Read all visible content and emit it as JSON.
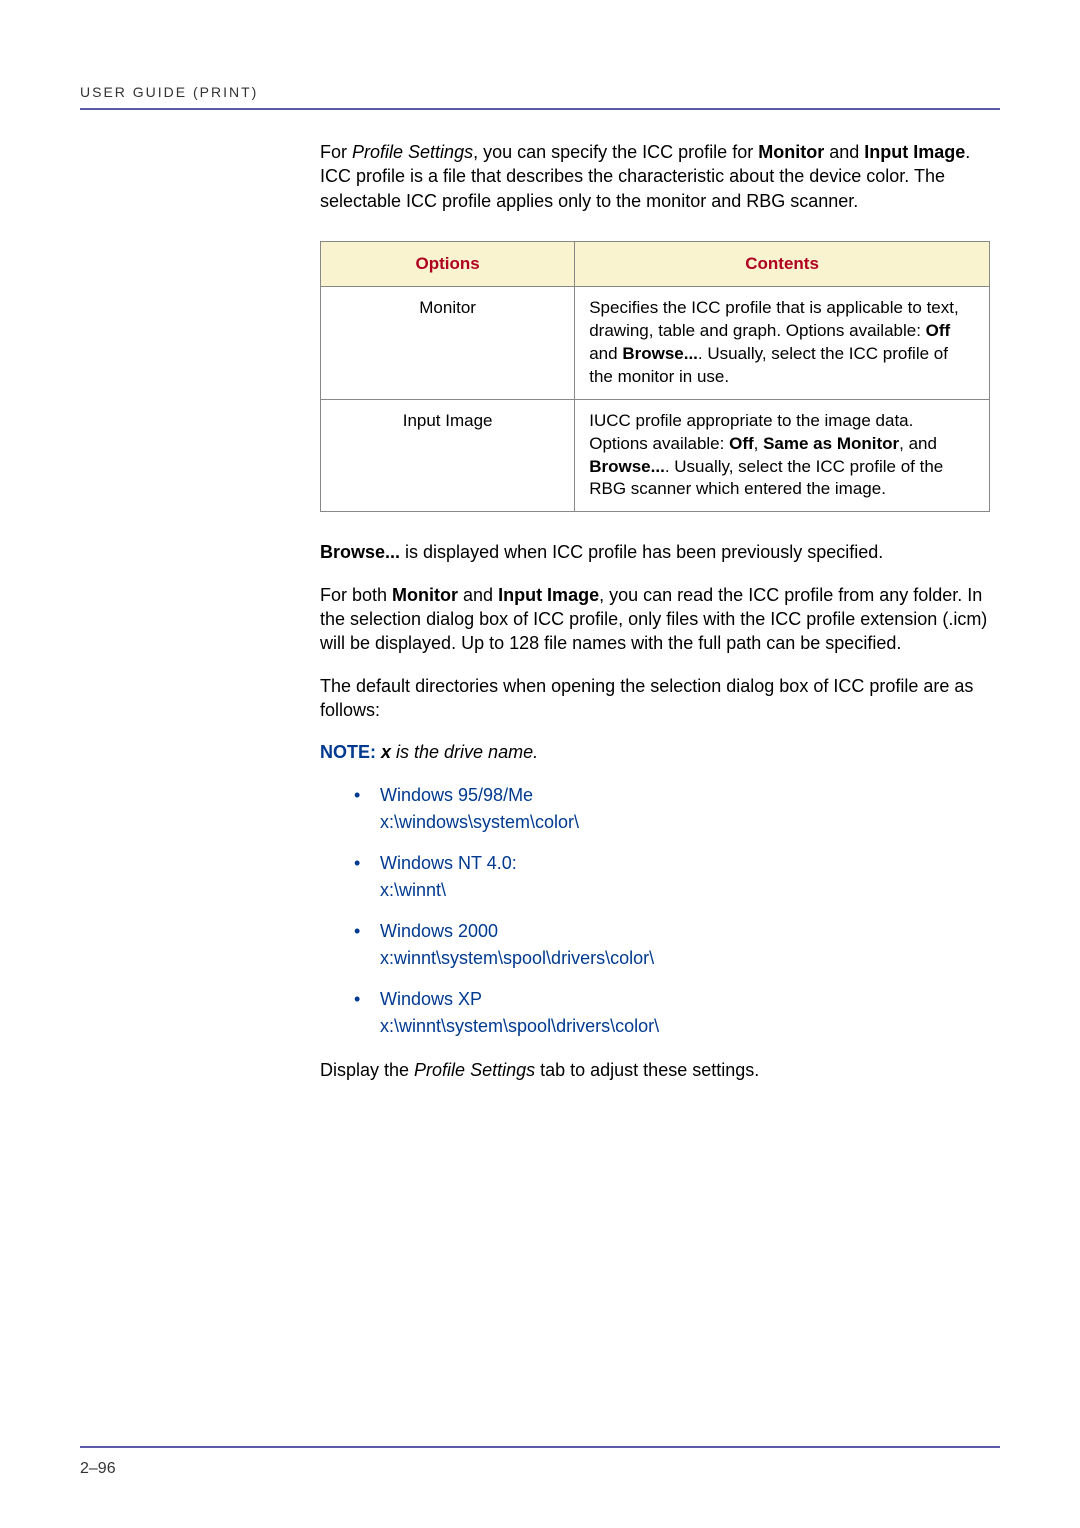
{
  "header": {
    "text": "USER GUIDE (PRINT)"
  },
  "intro": {
    "prefix": "For ",
    "profile_settings": "Profile Settings",
    "mid1": ", you can specify the ICC profile for ",
    "monitor": "Monitor",
    "mid2": " and ",
    "input_image": "Input Image",
    "rest": ". ICC profile is a file that describes the characteristic about the device color. The selectable ICC profile applies only to the monitor and RBG scanner."
  },
  "table": {
    "headers": {
      "options": "Options",
      "contents": "Contents"
    },
    "rows": [
      {
        "option": "Monitor",
        "content_parts": {
          "p1": "Specifies the ICC profile that is applicable to text, drawing, table and graph. Options available: ",
          "off": "Off",
          "p2": " and ",
          "browse": "Browse...",
          "p3": ". Usually, select the ICC profile of the monitor in use."
        }
      },
      {
        "option": "Input Image",
        "content_parts": {
          "p1": "IUCC profile appropriate to the image data. Options available: ",
          "off": "Off",
          "p2": ", ",
          "same_as": "Same as Monitor",
          "p3": ", and ",
          "browse": "Browse...",
          "p4": ". Usually, select the ICC profile of the RBG scanner which entered the image."
        }
      }
    ]
  },
  "browse_para": {
    "browse": "Browse...",
    "rest": " is displayed when ICC profile has been previously specified."
  },
  "both_para": {
    "p1": "For both ",
    "monitor": "Monitor",
    "p2": " and ",
    "input_image": "Input Image",
    "p3": ", you can read the ICC profile from any folder. In the selection dialog box of ICC profile, only files with the ICC profile extension (.icm) will be displayed. Up to 128 file names with the full path can be specified."
  },
  "default_dirs_para": "The default directories when opening the selection dialog box of ICC profile are as follows:",
  "note": {
    "label": "NOTE: ",
    "x": "x",
    "rest": " is the drive name."
  },
  "dir_list": [
    {
      "os": "Windows 95/98/Me",
      "path": "x:\\windows\\system\\color\\"
    },
    {
      "os": "Windows NT 4.0:",
      "path": "x:\\winnt\\"
    },
    {
      "os": "Windows 2000",
      "path": "x:winnt\\system\\spool\\drivers\\color\\"
    },
    {
      "os": "Windows XP",
      "path": "x:\\winnt\\system\\spool\\drivers\\color\\"
    }
  ],
  "display_para": {
    "p1": "Display the ",
    "profile_settings": "Profile Settings",
    "p2": " tab to adjust these settings."
  },
  "page_number": "2–96",
  "colors": {
    "rule": "#5a5aaa",
    "table_header_bg": "#f9f3d0",
    "table_header_text": "#b00020",
    "table_border": "#888888",
    "link_blue": "#003a90",
    "body_text": "#000000",
    "header_text": "#333333"
  }
}
